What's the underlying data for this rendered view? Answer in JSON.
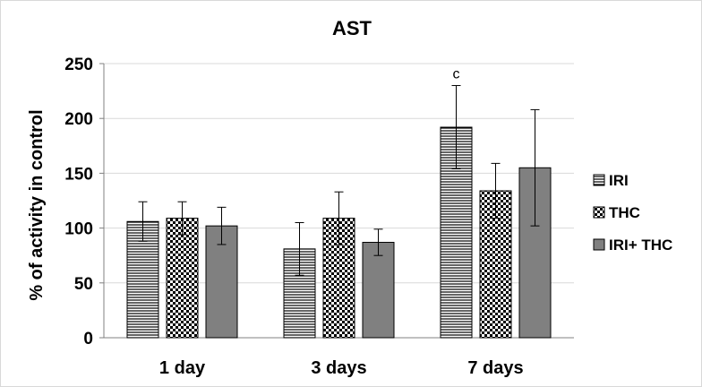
{
  "chart_data": {
    "type": "bar",
    "title": "AST",
    "xlabel": "",
    "ylabel": "% of activity in control",
    "ylim": [
      0,
      250
    ],
    "yticks": [
      0,
      50,
      100,
      150,
      200,
      250
    ],
    "grid": true,
    "legend_position": "right",
    "categories": [
      "1 day",
      "3 days",
      "7 days"
    ],
    "series": [
      {
        "name": "IRI",
        "pattern": "horizontal-lines",
        "values": [
          106,
          81,
          192
        ],
        "errors": [
          18,
          24,
          38
        ]
      },
      {
        "name": "THC",
        "pattern": "checkerboard",
        "values": [
          109,
          109,
          134
        ],
        "errors": [
          15,
          24,
          25
        ]
      },
      {
        "name": "IRI+ THC",
        "pattern": "solid-gray",
        "values": [
          102,
          87,
          155
        ],
        "errors": [
          17,
          12,
          53
        ]
      }
    ],
    "annotations": [
      {
        "text": "c",
        "category": "7 days",
        "series": "IRI"
      }
    ]
  },
  "colors": {
    "bar_fill_solid": "#808080",
    "bar_outline": "#000000",
    "gridline": "#d9d9d9",
    "axis": "#808080"
  }
}
